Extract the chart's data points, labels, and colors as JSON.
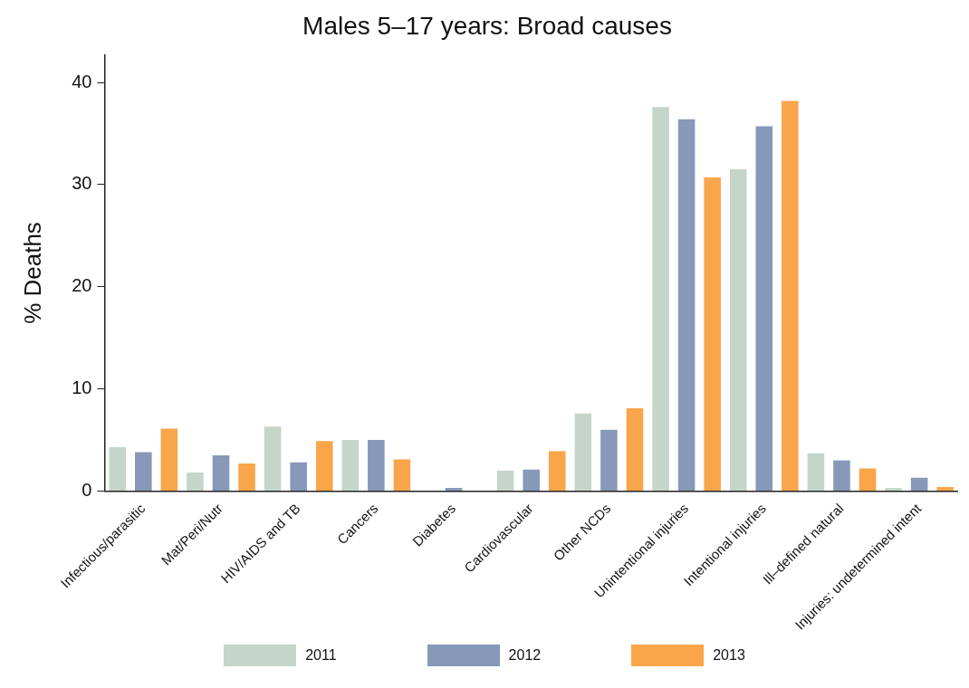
{
  "chart_data": {
    "type": "bar",
    "title": "Males 5–17 years: Broad causes",
    "ylabel": "% Deaths",
    "categories": [
      "Infectious/parasitic",
      "Mat/Peri/Nutr",
      "HIV/AIDS and TB",
      "Cancers",
      "Diabetes",
      "Cardiovascular",
      "Other NCDs",
      "Unintentional injuries",
      "Intentional injuries",
      "Ill–defined natural",
      "Injuries: undetermined intent"
    ],
    "series": [
      {
        "name": "2011",
        "color": "#c5d5ca",
        "values": [
          4.3,
          1.8,
          6.3,
          5.0,
          0,
          2.0,
          7.6,
          37.6,
          31.5,
          3.7,
          0.3
        ]
      },
      {
        "name": "2012",
        "color": "#8798b8",
        "values": [
          3.8,
          3.5,
          2.8,
          5.0,
          0.3,
          2.1,
          6.0,
          36.4,
          35.7,
          3.0,
          1.3
        ]
      },
      {
        "name": "2013",
        "color": "#f9a54a",
        "values": [
          6.1,
          2.7,
          4.9,
          3.1,
          0,
          3.9,
          8.1,
          30.7,
          38.2,
          2.2,
          0.4
        ]
      }
    ],
    "ylim": [
      0,
      42.7
    ],
    "yticks": [
      0,
      10,
      20,
      30,
      40
    ],
    "grid": false,
    "legend": "bottom"
  }
}
